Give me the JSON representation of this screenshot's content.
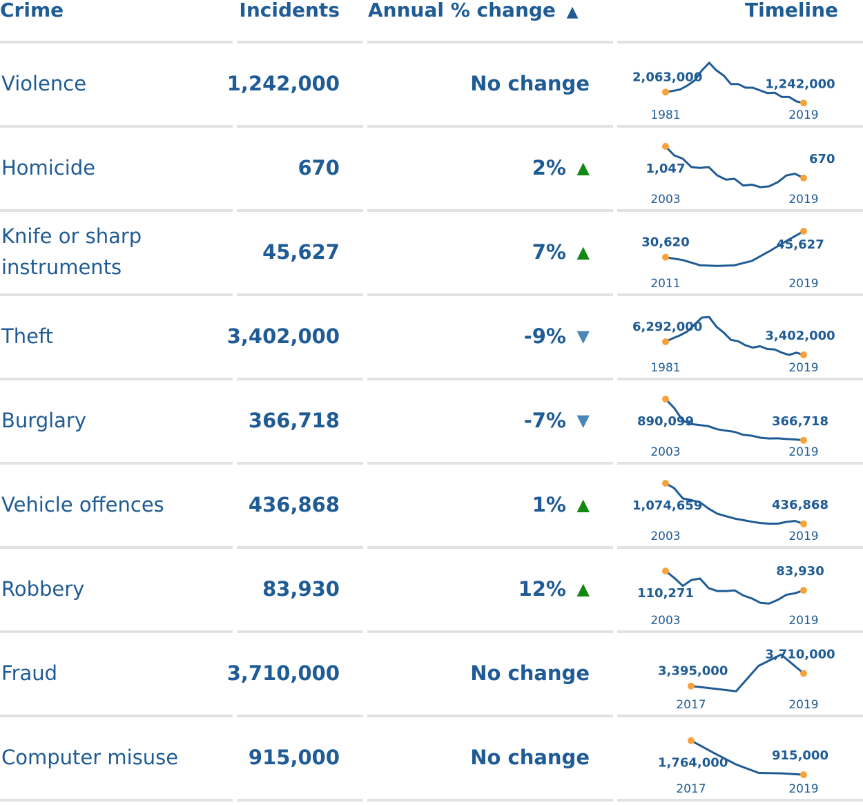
{
  "headers": {
    "crime": "Crime",
    "incidents": "Incidents",
    "annual_change": "Annual % change",
    "sort_icon": "triangle-up-icon",
    "timeline": "Timeline"
  },
  "colors": {
    "text": "#1f5b94",
    "line": "#1f5b94",
    "endpoint": "#f7a23b",
    "up": "#118811",
    "down": "#4a86b7",
    "divider": "#e2e2e2"
  },
  "rows": [
    {
      "crime": "Violence",
      "incidents": "1,242,000",
      "change": "No change",
      "direction": "none",
      "start_year": "1981",
      "end_year": "2019",
      "start_label": "2,063,000",
      "end_label": "1,242,000"
    },
    {
      "crime": "Homicide",
      "incidents": "670",
      "change": "2%",
      "direction": "up",
      "change_icon": "triangle-up-icon",
      "start_year": "2003",
      "end_year": "2019",
      "start_label": "1,047",
      "end_label": "670"
    },
    {
      "crime": "Knife or sharp instruments",
      "incidents": "45,627",
      "change": "7%",
      "direction": "up",
      "change_icon": "triangle-up-icon",
      "start_year": "2011",
      "end_year": "2019",
      "start_label": "30,620",
      "end_label": "45,627"
    },
    {
      "crime": "Theft",
      "incidents": "3,402,000",
      "change": "-9%",
      "direction": "down",
      "change_icon": "triangle-down-icon",
      "start_year": "1981",
      "end_year": "2019",
      "start_label": "6,292,000",
      "end_label": "3,402,000"
    },
    {
      "crime": "Burglary",
      "incidents": "366,718",
      "change": "-7%",
      "direction": "down",
      "change_icon": "triangle-down-icon",
      "start_year": "2003",
      "end_year": "2019",
      "start_label": "890,099",
      "end_label": "366,718"
    },
    {
      "crime": "Vehicle offences",
      "incidents": "436,868",
      "change": "1%",
      "direction": "up",
      "change_icon": "triangle-up-icon",
      "start_year": "2003",
      "end_year": "2019",
      "start_label": "1,074,659",
      "end_label": "436,868"
    },
    {
      "crime": "Robbery",
      "incidents": "83,930",
      "change": "12%",
      "direction": "up",
      "change_icon": "triangle-up-icon",
      "start_year": "2003",
      "end_year": "2019",
      "start_label": "110,271",
      "end_label": "83,930"
    },
    {
      "crime": "Fraud",
      "incidents": "3,710,000",
      "change": "No change",
      "direction": "none",
      "start_year": "2017",
      "end_year": "2019",
      "start_label": "3,395,000",
      "end_label": "3,710,000"
    },
    {
      "crime": "Computer misuse",
      "incidents": "915,000",
      "change": "No change",
      "direction": "none",
      "start_year": "2017",
      "end_year": "2019",
      "start_label": "1,764,000",
      "end_label": "915,000"
    }
  ],
  "chart_data": [
    {
      "type": "line",
      "name": "Violence",
      "x_range": [
        1981,
        2019
      ],
      "ylim": [
        1000000,
        4300000
      ],
      "series": [
        {
          "x": [
            1981,
            1983,
            1985,
            1987,
            1989,
            1991,
            1993,
            1995,
            1997,
            1999,
            2001,
            2003,
            2005,
            2007,
            2009,
            2011,
            2013,
            2015,
            2017,
            2019
          ],
          "values": [
            2063000,
            2150000,
            2260000,
            2550000,
            2930000,
            3680000,
            4250000,
            3680000,
            3300000,
            2660000,
            2660000,
            2390000,
            2390000,
            2190000,
            1990000,
            2020000,
            1700000,
            1700000,
            1370000,
            1242000
          ]
        }
      ]
    },
    {
      "type": "line",
      "name": "Homicide",
      "x_range": [
        2003,
        2019
      ],
      "ylim": [
        520,
        1047
      ],
      "series": [
        {
          "x": [
            2003,
            2004,
            2005,
            2006,
            2007,
            2008,
            2009,
            2010,
            2011,
            2012,
            2013,
            2014,
            2015,
            2016,
            2017,
            2018,
            2019
          ],
          "values": [
            1047,
            940,
            900,
            800,
            790,
            800,
            700,
            650,
            660,
            580,
            590,
            560,
            570,
            620,
            700,
            720,
            670
          ]
        }
      ]
    },
    {
      "type": "line",
      "name": "Knife or sharp instruments",
      "x_range": [
        2011,
        2019
      ],
      "ylim": [
        20500,
        46000
      ],
      "series": [
        {
          "x": [
            2011,
            2012,
            2013,
            2014,
            2015,
            2016,
            2017,
            2018,
            2019
          ],
          "values": [
            30620,
            29000,
            26000,
            25600,
            26000,
            28500,
            34000,
            40000,
            45627
          ]
        }
      ]
    },
    {
      "type": "line",
      "name": "Theft",
      "x_range": [
        1981,
        2019
      ],
      "ylim": [
        2500000,
        12200000
      ],
      "series": [
        {
          "x": [
            1981,
            1983,
            1985,
            1987,
            1989,
            1991,
            1993,
            1995,
            1997,
            1999,
            2001,
            2003,
            2005,
            2007,
            2009,
            2011,
            2013,
            2015,
            2017,
            2019
          ],
          "values": [
            6292000,
            7050000,
            7700000,
            8560000,
            10080000,
            11600000,
            11700000,
            9600000,
            8300000,
            6700000,
            6400000,
            5500000,
            5000000,
            5300000,
            4700000,
            4600000,
            3900000,
            3400000,
            3900000,
            3402000
          ]
        }
      ]
    },
    {
      "type": "line",
      "name": "Burglary",
      "x_range": [
        2003,
        2019
      ],
      "ylim": [
        330000,
        890099
      ],
      "series": [
        {
          "x": [
            2003,
            2004,
            2005,
            2006,
            2007,
            2008,
            2009,
            2010,
            2011,
            2012,
            2013,
            2014,
            2015,
            2016,
            2017,
            2018,
            2019
          ],
          "values": [
            890099,
            777000,
            615000,
            572000,
            560000,
            545000,
            507000,
            489000,
            474000,
            437000,
            425000,
            400000,
            390000,
            392000,
            383000,
            378000,
            366718
          ]
        }
      ]
    },
    {
      "type": "line",
      "name": "Vehicle offences",
      "x_range": [
        2003,
        2019
      ],
      "ylim": [
        380000,
        1074659
      ],
      "series": [
        {
          "x": [
            2003,
            2004,
            2005,
            2006,
            2007,
            2008,
            2009,
            2010,
            2011,
            2012,
            2013,
            2014,
            2015,
            2016,
            2017,
            2018,
            2019
          ],
          "values": [
            1074659,
            998000,
            837000,
            810000,
            775000,
            675000,
            596000,
            557000,
            520000,
            495000,
            470000,
            450000,
            440000,
            440000,
            467000,
            483000,
            436868
          ]
        }
      ]
    },
    {
      "type": "line",
      "name": "Robbery",
      "x_range": [
        2003,
        2019
      ],
      "ylim": [
        55000,
        115000
      ],
      "series": [
        {
          "x": [
            2003,
            2004,
            2005,
            2006,
            2007,
            2008,
            2009,
            2010,
            2011,
            2012,
            2013,
            2014,
            2015,
            2016,
            2017,
            2018,
            2019
          ],
          "values": [
            110271,
            101000,
            90000,
            98000,
            100000,
            87000,
            83000,
            83000,
            84000,
            77000,
            73000,
            67000,
            66000,
            71000,
            78000,
            80000,
            83930
          ]
        }
      ]
    },
    {
      "type": "line",
      "name": "Fraud",
      "x_range": [
        2017,
        2019
      ],
      "ylim": [
        3150000,
        4250000
      ],
      "series": [
        {
          "x": [
            2017.0,
            2017.4,
            2017.8,
            2018.2,
            2018.6,
            2019.0
          ],
          "values": [
            3395000,
            3333000,
            3265000,
            3900000,
            4180000,
            3710000
          ]
        }
      ]
    },
    {
      "type": "line",
      "name": "Computer misuse",
      "x_range": [
        2017,
        2019
      ],
      "ylim": [
        780000,
        1880000
      ],
      "series": [
        {
          "x": [
            2017.0,
            2017.4,
            2017.8,
            2018.2,
            2018.6,
            2019.0
          ],
          "values": [
            1764000,
            1460000,
            1170000,
            960000,
            950000,
            915000
          ]
        }
      ]
    }
  ]
}
